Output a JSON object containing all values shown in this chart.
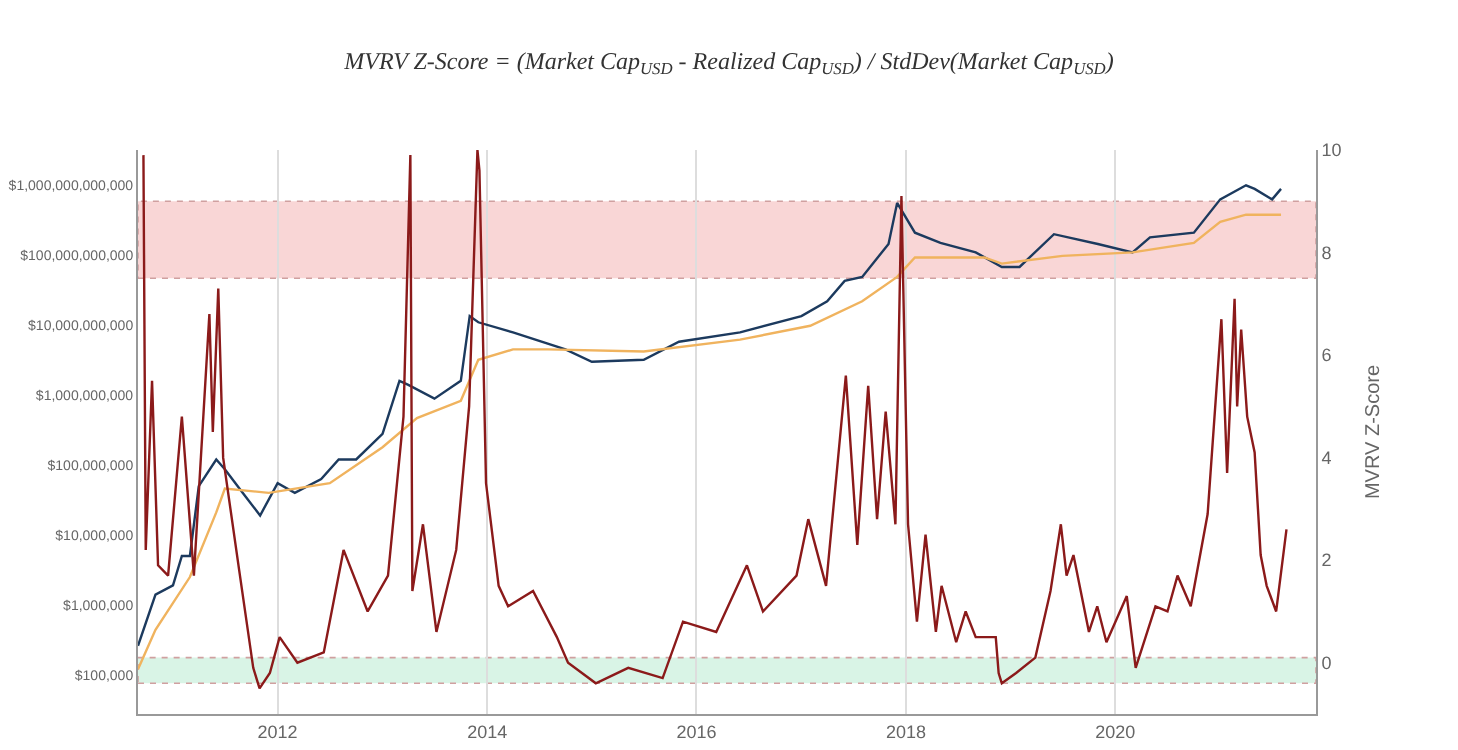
{
  "chart_data": {
    "type": "line",
    "title": "MVRV Z-Score = (Market Cap$_{USD}$ - Realized Cap$_{USD}$) / StdDev(Market Cap$_{USD}$)",
    "y2label": "MVRV Z-Score",
    "log": "y",
    "grid": "x",
    "legend": false,
    "marker": "none",
    "line_style": "solid",
    "xlim": [
      "2010-09",
      "2021-12"
    ],
    "xticks": [
      "2012",
      "2014",
      "2016",
      "2018",
      "2020"
    ],
    "ylim": [
      27500,
      3200000000000
    ],
    "yticks": [
      {
        "value": 100000,
        "label": "$100,000"
      },
      {
        "value": 1000000,
        "label": "$1,000,000"
      },
      {
        "value": 10000000,
        "label": "$10,000,000"
      },
      {
        "value": 100000000,
        "label": "$100,000,000"
      },
      {
        "value": 1000000000,
        "label": "$1,000,000,000"
      },
      {
        "value": 10000000000,
        "label": "$10,000,000,000"
      },
      {
        "value": 100000000000,
        "label": "$100,000,000,000"
      },
      {
        "value": 1000000000000,
        "label": "$1,000,000,000,000"
      }
    ],
    "y2lim": [
      -1,
      10
    ],
    "y2ticks": [
      0,
      2,
      4,
      6,
      8,
      10
    ],
    "bands": [
      {
        "axis": "y2",
        "from": 7.5,
        "to": 9,
        "color": "#f9d6d6"
      },
      {
        "axis": "y2",
        "from": -0.4,
        "to": 0.1,
        "color": "#d9f4e6"
      }
    ],
    "series": [
      {
        "color": "#1c3a5e",
        "axis": "y",
        "x": [
          "2010-09",
          "2010-11",
          "2011-01",
          "2011-02",
          "2011-03",
          "2011-04",
          "2011-06",
          "2011-07",
          "2011-09",
          "2011-11",
          "2012-01",
          "2012-03",
          "2012-06",
          "2012-08",
          "2012-10",
          "2013-01",
          "2013-03",
          "2013-04",
          "2013-07",
          "2013-10",
          "2013-11",
          "2013-12",
          "2014-04",
          "2014-10",
          "2015-01",
          "2015-07",
          "2015-11",
          "2016-06",
          "2017-01",
          "2017-04",
          "2017-06",
          "2017-08",
          "2017-11",
          "2017-12",
          "2018-02",
          "2018-05",
          "2018-09",
          "2018-12",
          "2019-02",
          "2019-06",
          "2019-11",
          "2020-03",
          "2020-05",
          "2020-10",
          "2021-01",
          "2021-04",
          "2021-05",
          "2021-07",
          "2021-08"
        ],
        "values": [
          260000,
          1400000,
          1900000,
          5000000,
          5000000,
          50000000,
          120000000,
          87000000,
          40000000,
          19000000,
          55000000,
          40000000,
          63000000,
          120000000,
          120000000,
          280000000,
          1600000000,
          1400000000,
          890000000,
          1600000000,
          13500000000,
          11000000000,
          7900000000,
          4500000000,
          3000000000,
          3200000000,
          5800000000,
          7900000000,
          13500000000,
          22000000000,
          43000000000,
          49000000000,
          145000000000,
          560000000000,
          210000000000,
          150000000000,
          110000000000,
          68000000000,
          68000000000,
          200000000000,
          145000000000,
          110000000000,
          180000000000,
          210000000000,
          630000000000,
          1000000000000,
          890000000000,
          630000000000,
          890000000000
        ]
      },
      {
        "color": "#f0b35e",
        "axis": "y",
        "x": [
          "2010-09",
          "2010-11",
          "2011-03",
          "2011-06",
          "2011-07",
          "2011-12",
          "2012-07",
          "2013-01",
          "2013-05",
          "2013-10",
          "2013-12",
          "2014-04",
          "2014-08",
          "2015-07",
          "2016-06",
          "2017-02",
          "2017-08",
          "2017-12",
          "2018-02",
          "2018-10",
          "2018-12",
          "2019-07",
          "2020-03",
          "2020-10",
          "2021-01",
          "2021-04",
          "2021-08"
        ],
        "values": [
          120000,
          440000,
          2500000,
          21000000,
          46000000,
          40000000,
          55000000,
          180000000,
          470000000,
          830000000,
          3200000000,
          4500000000,
          4500000000,
          4200000000,
          6200000000,
          9800000000,
          22000000000,
          49000000000,
          93000000000,
          93000000000,
          76000000000,
          98000000000,
          110000000000,
          150000000000,
          300000000000,
          380000000000,
          380000000000
        ]
      },
      {
        "color": "#8b1a1a",
        "axis": "y2",
        "x": [
          "2010-09-20",
          "2010-09-28",
          "2010-10-20",
          "2010-11-10",
          "2010-12-15",
          "2011-02-01",
          "2011-03-15",
          "2011-05-08",
          "2011-05-20",
          "2011-06-08",
          "2011-06-25",
          "2011-08-20",
          "2011-10-08",
          "2011-10-30",
          "2011-12-05",
          "2012-01-08",
          "2012-03-10",
          "2012-06-10",
          "2012-08-18",
          "2012-11-10",
          "2013-01-20",
          "2013-03-15",
          "2013-04-08",
          "2013-04-15",
          "2013-05-22",
          "2013-07-08",
          "2013-09-15",
          "2013-10-30",
          "2013-11-28",
          "2013-12-05",
          "2013-12-28",
          "2014-02-10",
          "2014-03-15",
          "2014-06-10",
          "2014-09-01",
          "2014-10-10",
          "2015-01-15",
          "2015-05-08",
          "2015-09-05",
          "2015-11-15",
          "2016-03-10",
          "2016-06-25",
          "2016-08-20",
          "2016-12-15",
          "2017-01-25",
          "2017-03-28",
          "2017-06-05",
          "2017-07-15",
          "2017-08-22",
          "2017-09-22",
          "2017-10-22",
          "2017-11-25",
          "2017-12-16",
          "2018-01-08",
          "2018-02-08",
          "2018-03-10",
          "2018-04-15",
          "2018-05-05",
          "2018-06-25",
          "2018-07-28",
          "2018-09-01",
          "2018-11-10",
          "2018-11-20",
          "2018-12-01",
          "2019-01-20",
          "2019-03-28",
          "2019-05-20",
          "2019-06-25",
          "2019-07-15",
          "2019-08-08",
          "2019-10-01",
          "2019-10-30",
          "2019-12-01",
          "2020-02-10",
          "2020-03-12",
          "2020-05-20",
          "2020-07-01",
          "2020-08-05",
          "2020-09-20",
          "2020-11-18",
          "2021-01-05",
          "2021-01-25",
          "2021-02-20",
          "2021-03-01",
          "2021-03-15",
          "2021-04-05",
          "2021-05-01",
          "2021-05-22",
          "2021-06-12",
          "2021-07-15",
          "2021-08-20"
        ],
        "values": [
          9.9,
          2.2,
          5.5,
          1.9,
          1.7,
          4.8,
          1.7,
          6.8,
          4.5,
          7.3,
          4.0,
          1.8,
          -0.1,
          -0.5,
          -0.2,
          0.5,
          0,
          0.2,
          2.2,
          1.0,
          1.7,
          4.8,
          9.9,
          1.4,
          2.7,
          0.6,
          2.2,
          5.0,
          10,
          9.6,
          3.5,
          1.5,
          1.1,
          1.4,
          0.5,
          0,
          -0.4,
          -0.1,
          -0.3,
          0.8,
          0.6,
          1.9,
          1.0,
          1.7,
          2.8,
          1.5,
          5.6,
          2.3,
          5.4,
          2.8,
          4.9,
          2.7,
          9.1,
          2.7,
          0.8,
          2.5,
          0.6,
          1.5,
          0.4,
          1.0,
          0.5,
          0.5,
          -0.2,
          -0.4,
          -0.2,
          0.1,
          1.4,
          2.7,
          1.7,
          2.1,
          0.6,
          1.1,
          0.4,
          1.3,
          -0.1,
          1.1,
          1.0,
          1.7,
          1.1,
          2.9,
          6.7,
          3.7,
          7.1,
          5.0,
          6.5,
          4.8,
          4.1,
          2.1,
          1.5,
          1.0,
          2.6
        ]
      }
    ]
  }
}
